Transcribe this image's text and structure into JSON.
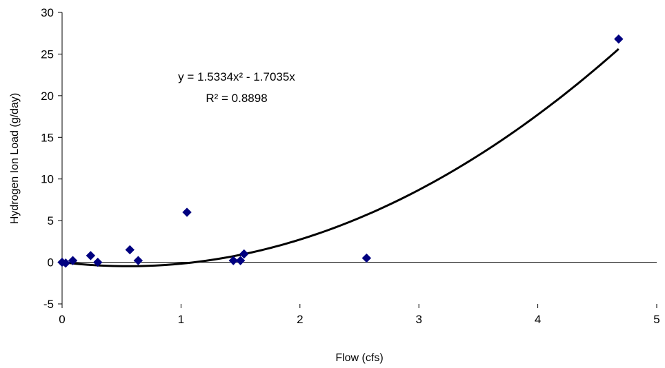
{
  "chart_data": {
    "type": "scatter",
    "title": "",
    "xlabel": "Flow  (cfs)",
    "ylabel": "Hydrogen Ion Load (g/day)",
    "xlim": [
      0,
      5
    ],
    "ylim": [
      -5,
      30
    ],
    "x_ticks": [
      0,
      1,
      2,
      3,
      4,
      5
    ],
    "y_ticks": [
      -5,
      0,
      5,
      10,
      15,
      20,
      25,
      30
    ],
    "grid": false,
    "legend": "none",
    "marker": "diamond",
    "marker_color": "#000080",
    "series": [
      {
        "points": [
          {
            "x": 0.0,
            "y": 0.0
          },
          {
            "x": 0.03,
            "y": -0.1
          },
          {
            "x": 0.09,
            "y": 0.2
          },
          {
            "x": 0.24,
            "y": 0.8
          },
          {
            "x": 0.3,
            "y": 0.0
          },
          {
            "x": 0.57,
            "y": 1.5
          },
          {
            "x": 0.64,
            "y": 0.2
          },
          {
            "x": 1.05,
            "y": 6.0
          },
          {
            "x": 1.44,
            "y": 0.2
          },
          {
            "x": 1.5,
            "y": 0.2
          },
          {
            "x": 1.53,
            "y": 1.0
          },
          {
            "x": 2.56,
            "y": 0.5
          },
          {
            "x": 4.68,
            "y": 26.8
          }
        ]
      }
    ],
    "trendline": {
      "type": "polynomial",
      "a2": 1.5334,
      "a1": -1.7035,
      "x_range": [
        0,
        4.68
      ],
      "color": "#000000",
      "equation_text": "y = 1.5334x² - 1.7035x",
      "r2_text": "R² = 0.8898"
    }
  }
}
